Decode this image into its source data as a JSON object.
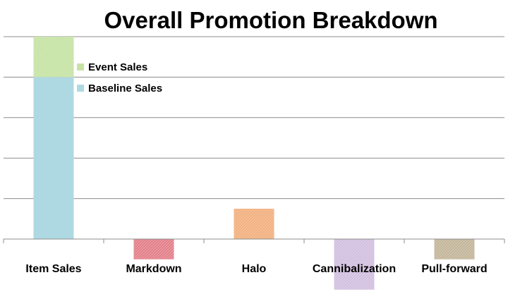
{
  "chart_data": {
    "type": "bar",
    "stacked": true,
    "title": "Overall Promotion Breakdown",
    "xlabel": "",
    "ylabel": "",
    "categories": [
      "Item Sales",
      "Markdown",
      "Halo",
      "Cannibalization",
      "Pull-forward"
    ],
    "ylim": [
      -1.3,
      5.0
    ],
    "gridlines": [
      0,
      1,
      2,
      3,
      4,
      5
    ],
    "grid": true,
    "y_tick_labels_shown": false,
    "legend": {
      "placement": "top-left",
      "entries": [
        "Event Sales",
        "Baseline Sales"
      ]
    },
    "series": [
      {
        "name": "Baseline Sales",
        "color": "#aed9e3",
        "hatch": false,
        "values": [
          4.0,
          0,
          0,
          0,
          0
        ]
      },
      {
        "name": "Event Sales",
        "color": "#c6e3a4",
        "hatch": true,
        "values": [
          1.0,
          0,
          0,
          0,
          0
        ]
      }
    ],
    "components": [
      {
        "category": "Markdown",
        "value": -0.5,
        "color": "#e3808a",
        "hatch": true
      },
      {
        "category": "Halo",
        "value": 0.75,
        "color": "#f2b07f",
        "hatch": true
      },
      {
        "category": "Cannibalization",
        "value": -1.25,
        "color": "#d2bfe0",
        "hatch": true
      },
      {
        "category": "Pull-forward",
        "value": -0.5,
        "color": "#c3b69a",
        "hatch": true
      }
    ]
  }
}
